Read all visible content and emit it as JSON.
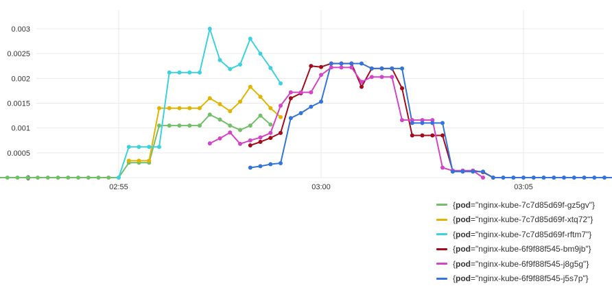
{
  "chart_data": {
    "type": "line",
    "title": "",
    "xlabel": "",
    "ylabel": "",
    "x_range": [
      "02:51",
      "03:09"
    ],
    "ylim": [
      0,
      0.0032
    ],
    "grid": true,
    "legend_position": "bottom-right",
    "x_ticks": [
      "02:55",
      "03:00",
      "03:05"
    ],
    "y_ticks": [
      "0",
      "0.0005",
      "0.001",
      "0.0015",
      "0.002",
      "0.0025",
      "0.003"
    ],
    "series": [
      {
        "name": "{pod=\"nginx-kube-7c7d85d69f-gz5gv\"}",
        "pod": "nginx-kube-7c7d85d69f-gz5gv",
        "color": "#73bf69",
        "x": [
          "02:50:45",
          "02:51:00",
          "02:51:15",
          "02:51:30",
          "02:51:45",
          "02:52:00",
          "02:52:15",
          "02:52:30",
          "02:52:45",
          "02:53:00",
          "02:53:15",
          "02:53:30",
          "02:53:45",
          "02:54:00",
          "02:54:15",
          "02:54:30",
          "02:54:45",
          "02:55:00",
          "02:55:15",
          "02:55:30",
          "02:55:45",
          "02:56:00",
          "02:56:15",
          "02:56:30",
          "02:56:45",
          "02:57:00",
          "02:57:15",
          "02:57:30",
          "02:57:45",
          "02:58:00",
          "02:58:15",
          "02:58:30",
          "02:58:45"
        ],
        "y": [
          0,
          0,
          0,
          0,
          0,
          0,
          0,
          0,
          0,
          0,
          0,
          0,
          0,
          0,
          0,
          0,
          0,
          0,
          0.0003,
          0.0003,
          0.0003,
          0.00105,
          0.00105,
          0.00105,
          0.00105,
          0.00105,
          0.00127,
          0.00117,
          0.00105,
          0.00096,
          0.00105,
          0.00125,
          0.00107
        ]
      },
      {
        "name": "{pod=\"nginx-kube-7c7d85d69f-xtq72\"}",
        "pod": "nginx-kube-7c7d85d69f-xtq72",
        "color": "#e0b400",
        "x": [
          "02:55:15",
          "02:55:30",
          "02:55:45",
          "02:56:00",
          "02:56:15",
          "02:56:30",
          "02:56:45",
          "02:57:00",
          "02:57:15",
          "02:57:30",
          "02:57:45",
          "02:58:00",
          "02:58:15",
          "02:58:30",
          "02:58:45",
          "02:59:00"
        ],
        "y": [
          0.00034,
          0.00034,
          0.00034,
          0.0014,
          0.0014,
          0.0014,
          0.0014,
          0.0014,
          0.0016,
          0.00148,
          0.00134,
          0.00153,
          0.00183,
          0.00163,
          0.0014,
          0.00122
        ]
      },
      {
        "name": "{pod=\"nginx-kube-7c7d85d69f-rftm7\"}",
        "pod": "nginx-kube-7c7d85d69f-rftm7",
        "color": "#3dd1e0",
        "x": [
          "02:55:00",
          "02:55:15",
          "02:55:30",
          "02:55:45",
          "02:56:00",
          "02:56:15",
          "02:56:30",
          "02:56:45",
          "02:57:00",
          "02:57:15",
          "02:57:30",
          "02:57:45",
          "02:58:00",
          "02:58:15",
          "02:58:30",
          "02:58:45",
          "02:59:00"
        ],
        "y": [
          0,
          0.00062,
          0.00062,
          0.00062,
          0.00062,
          0.00212,
          0.00212,
          0.00212,
          0.00212,
          0.003,
          0.00237,
          0.00219,
          0.00228,
          0.0028,
          0.0025,
          0.00221,
          0.0019
        ]
      },
      {
        "name": "{pod=\"nginx-kube-6f9f88f545-bm9jb\"}",
        "pod": "nginx-kube-6f9f88f545-bm9jb",
        "color": "#a30a1a",
        "x": [
          "02:58:15",
          "02:58:30",
          "02:58:45",
          "02:59:00",
          "02:59:15",
          "02:59:30",
          "02:59:45",
          "03:00:00",
          "03:00:15",
          "03:00:30",
          "03:00:45",
          "03:01:00",
          "03:01:15",
          "03:01:30",
          "03:01:45",
          "03:02:00",
          "03:02:15",
          "03:02:30",
          "03:02:45",
          "03:03:00",
          "03:03:15",
          "03:03:30",
          "03:03:45",
          "03:04:00",
          "03:04:15"
        ],
        "y": [
          0.00065,
          0.00072,
          0.0008,
          0.0009,
          0.0016,
          0.0017,
          0.00225,
          0.00223,
          0.0023,
          0.0023,
          0.0023,
          0.00183,
          0.0022,
          0.0022,
          0.0022,
          0.0018,
          0.00085,
          0.00085,
          0.00085,
          0.00085,
          0.00014,
          0.00014,
          0.00014,
          0.00011,
          0
        ]
      },
      {
        "name": "{pod=\"nginx-kube-6f9f88f545-j8g5g\"}",
        "pod": "nginx-kube-6f9f88f545-j8g5g",
        "color": "#d444c9",
        "x": [
          "02:57:15",
          "02:57:30",
          "02:57:45",
          "02:58:00",
          "02:58:15",
          "02:58:30",
          "02:58:45",
          "02:59:00",
          "02:59:15",
          "02:59:30",
          "02:59:45",
          "03:00:00",
          "03:00:15",
          "03:00:30",
          "03:00:45",
          "03:01:00",
          "03:01:15",
          "03:01:30",
          "03:01:45",
          "03:02:00",
          "03:02:15",
          "03:02:30",
          "03:02:45",
          "03:03:00",
          "03:03:15",
          "03:03:30",
          "03:03:45",
          "03:04:00"
        ],
        "y": [
          0.00069,
          0.00079,
          0.00091,
          0.00068,
          0.00075,
          0.00081,
          0.0009,
          0.00145,
          0.00172,
          0.00172,
          0.00172,
          0.00207,
          0.00222,
          0.00222,
          0.00222,
          0.00193,
          0.00203,
          0.00203,
          0.00203,
          0.00116,
          0.00116,
          0.00116,
          0.00116,
          0.0002,
          0.00014,
          0.00014,
          0.00014,
          0
        ]
      },
      {
        "name": "{pod=\"nginx-kube-6f9f88f545-j5s7p\"}",
        "pod": "nginx-kube-6f9f88f545-j5s7p",
        "color": "#3274d9",
        "x": [
          "02:58:15",
          "02:58:30",
          "02:58:45",
          "02:59:00",
          "02:59:15",
          "02:59:30",
          "02:59:45",
          "03:00:00",
          "03:00:15",
          "03:00:30",
          "03:00:45",
          "03:01:00",
          "03:01:15",
          "03:01:30",
          "03:01:45",
          "03:02:00",
          "03:02:15",
          "03:02:30",
          "03:02:45",
          "03:03:00",
          "03:03:15",
          "03:03:30",
          "03:03:45",
          "03:04:00",
          "03:04:15",
          "03:04:30",
          "03:04:45",
          "03:05:00",
          "03:05:15",
          "03:05:30",
          "03:05:45",
          "03:06:00",
          "03:06:15",
          "03:06:30",
          "03:06:45",
          "03:07:00",
          "03:07:15",
          "03:07:30",
          "03:07:45",
          "03:08:00",
          "03:08:15",
          "03:08:30",
          "03:08:45"
        ],
        "y": [
          0.0002,
          0.00023,
          0.00027,
          0.00029,
          0.0012,
          0.0013,
          0.00143,
          0.00153,
          0.0023,
          0.0023,
          0.0023,
          0.0023,
          0.0022,
          0.0022,
          0.0022,
          0.0022,
          0.0011,
          0.0011,
          0.0011,
          0.0011,
          0.00012,
          0.00012,
          0.00012,
          0.00012,
          0,
          0,
          0,
          0,
          0,
          0,
          0,
          0,
          0,
          0,
          0,
          0,
          0,
          0,
          0,
          0,
          0,
          0,
          0
        ]
      }
    ]
  }
}
